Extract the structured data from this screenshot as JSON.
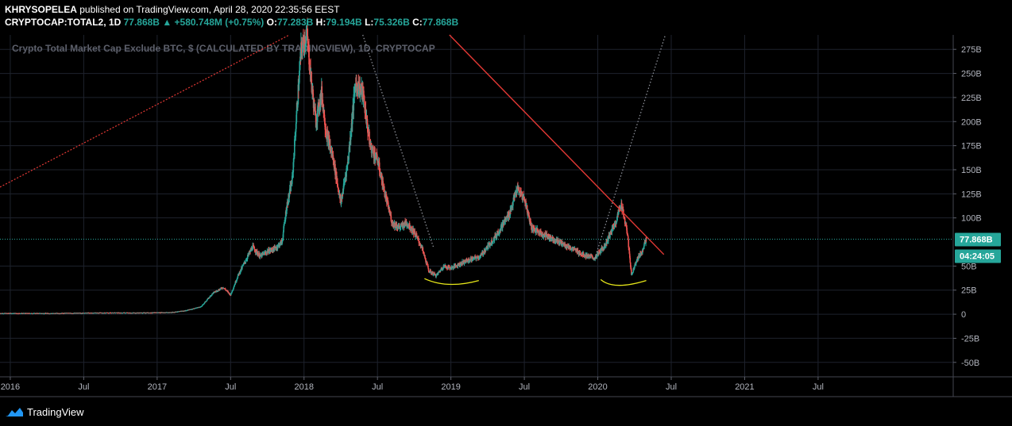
{
  "header": {
    "author": "KHRYSOPELEA",
    "published_text": " published on TradingView.com, April 28, 2020 22:35:56 EEST",
    "symbol": "CRYPTOCAP:TOTAL2, 1D",
    "last": "77.868B",
    "change": "▲ +580.748M (+0.75%)",
    "o_label": "O:",
    "o_value": "77.283B",
    "h_label": "H:",
    "h_value": "79.194B",
    "l_label": "L:",
    "l_value": "75.326B",
    "c_label": "C:",
    "c_value": "77.868B"
  },
  "footer": {
    "logo_icon": "tradingview-cloud-icon",
    "brand": "TradingView"
  },
  "colors": {
    "up": "#26a69a",
    "down": "#ef5350",
    "trend_red": "#e53935",
    "current_line": "#26a69a",
    "arc": "#e6e619",
    "dotted_white": "#9598a1",
    "grid": "#1e222d"
  },
  "chart_data": {
    "type": "candlestick",
    "title": "Crypto Total Market Cap Exclude BTC, $ (CALCULATED BY TRADINGVIEW), 1D, CRYPTOCAP",
    "y_unit": "USD (billions)",
    "ylim": [
      -65,
      290
    ],
    "y_ticks": [
      {
        "v": 275,
        "label": "275B"
      },
      {
        "v": 250,
        "label": "250B"
      },
      {
        "v": 225,
        "label": "225B"
      },
      {
        "v": 200,
        "label": "200B"
      },
      {
        "v": 175,
        "label": "175B"
      },
      {
        "v": 150,
        "label": "150B"
      },
      {
        "v": 125,
        "label": "125B"
      },
      {
        "v": 100,
        "label": "100B"
      },
      {
        "v": 50,
        "label": "50B"
      },
      {
        "v": 25,
        "label": "25B"
      },
      {
        "v": 0,
        "label": "0"
      },
      {
        "v": -25,
        "label": "-25B"
      },
      {
        "v": -50,
        "label": "-50B"
      }
    ],
    "x_ticks": [
      {
        "t": 2016.0,
        "label": "2016"
      },
      {
        "t": 2016.5,
        "label": "Jul"
      },
      {
        "t": 2017.0,
        "label": "2017"
      },
      {
        "t": 2017.5,
        "label": "Jul"
      },
      {
        "t": 2018.0,
        "label": "2018"
      },
      {
        "t": 2018.5,
        "label": "Jul"
      },
      {
        "t": 2019.0,
        "label": "2019"
      },
      {
        "t": 2019.5,
        "label": "Jul"
      },
      {
        "t": 2020.0,
        "label": "2020"
      },
      {
        "t": 2020.5,
        "label": "Jul"
      },
      {
        "t": 2021.0,
        "label": "2021"
      },
      {
        "t": 2021.5,
        "label": "Jul"
      }
    ],
    "xlim": [
      2015.93,
      2022.42
    ],
    "current_price": {
      "value": 77.868,
      "label": "77.868B",
      "countdown": "04:24:05"
    },
    "price_path": [
      [
        2015.93,
        1
      ],
      [
        2016.3,
        1
      ],
      [
        2016.6,
        1.5
      ],
      [
        2016.9,
        1.5
      ],
      [
        2017.1,
        2
      ],
      [
        2017.2,
        4
      ],
      [
        2017.3,
        8
      ],
      [
        2017.38,
        22
      ],
      [
        2017.45,
        28
      ],
      [
        2017.5,
        20
      ],
      [
        2017.55,
        40
      ],
      [
        2017.6,
        55
      ],
      [
        2017.65,
        70
      ],
      [
        2017.7,
        60
      ],
      [
        2017.75,
        65
      ],
      [
        2017.8,
        68
      ],
      [
        2017.85,
        75
      ],
      [
        2017.88,
        110
      ],
      [
        2017.92,
        140
      ],
      [
        2017.95,
        210
      ],
      [
        2017.98,
        275
      ],
      [
        2018.02,
        290
      ],
      [
        2018.05,
        240
      ],
      [
        2018.08,
        200
      ],
      [
        2018.12,
        230
      ],
      [
        2018.15,
        190
      ],
      [
        2018.2,
        160
      ],
      [
        2018.25,
        115
      ],
      [
        2018.3,
        160
      ],
      [
        2018.35,
        240
      ],
      [
        2018.4,
        230
      ],
      [
        2018.45,
        175
      ],
      [
        2018.5,
        160
      ],
      [
        2018.55,
        125
      ],
      [
        2018.6,
        95
      ],
      [
        2018.65,
        90
      ],
      [
        2018.7,
        95
      ],
      [
        2018.75,
        85
      ],
      [
        2018.8,
        70
      ],
      [
        2018.85,
        45
      ],
      [
        2018.9,
        40
      ],
      [
        2018.95,
        50
      ],
      [
        2019.0,
        48
      ],
      [
        2019.1,
        55
      ],
      [
        2019.2,
        60
      ],
      [
        2019.3,
        80
      ],
      [
        2019.4,
        105
      ],
      [
        2019.45,
        130
      ],
      [
        2019.5,
        120
      ],
      [
        2019.55,
        90
      ],
      [
        2019.6,
        85
      ],
      [
        2019.7,
        78
      ],
      [
        2019.8,
        70
      ],
      [
        2019.9,
        62
      ],
      [
        2019.98,
        58
      ],
      [
        2020.05,
        72
      ],
      [
        2020.12,
        95
      ],
      [
        2020.16,
        115
      ],
      [
        2020.2,
        85
      ],
      [
        2020.23,
        40
      ],
      [
        2020.26,
        55
      ],
      [
        2020.3,
        65
      ],
      [
        2020.33,
        78
      ]
    ],
    "trend_lines": [
      {
        "style": "red-dotted",
        "from": [
          2015.93,
          132
        ],
        "to": [
          2017.9,
          290
        ]
      },
      {
        "style": "red-solid",
        "from": [
          2018.99,
          290
        ],
        "to": [
          2020.45,
          62
        ]
      },
      {
        "style": "white-dotted",
        "from": [
          2018.4,
          290
        ],
        "to": [
          2018.88,
          70
        ]
      },
      {
        "style": "white-dotted",
        "from": [
          2019.98,
          58
        ],
        "to": [
          2020.46,
          290
        ]
      }
    ],
    "arcs": [
      {
        "from": [
          2018.82,
          37
        ],
        "mid": [
          2018.99,
          31
        ],
        "to": [
          2019.19,
          35
        ]
      },
      {
        "from": [
          2020.02,
          36
        ],
        "mid": [
          2020.14,
          30
        ],
        "to": [
          2020.33,
          35
        ]
      }
    ]
  }
}
